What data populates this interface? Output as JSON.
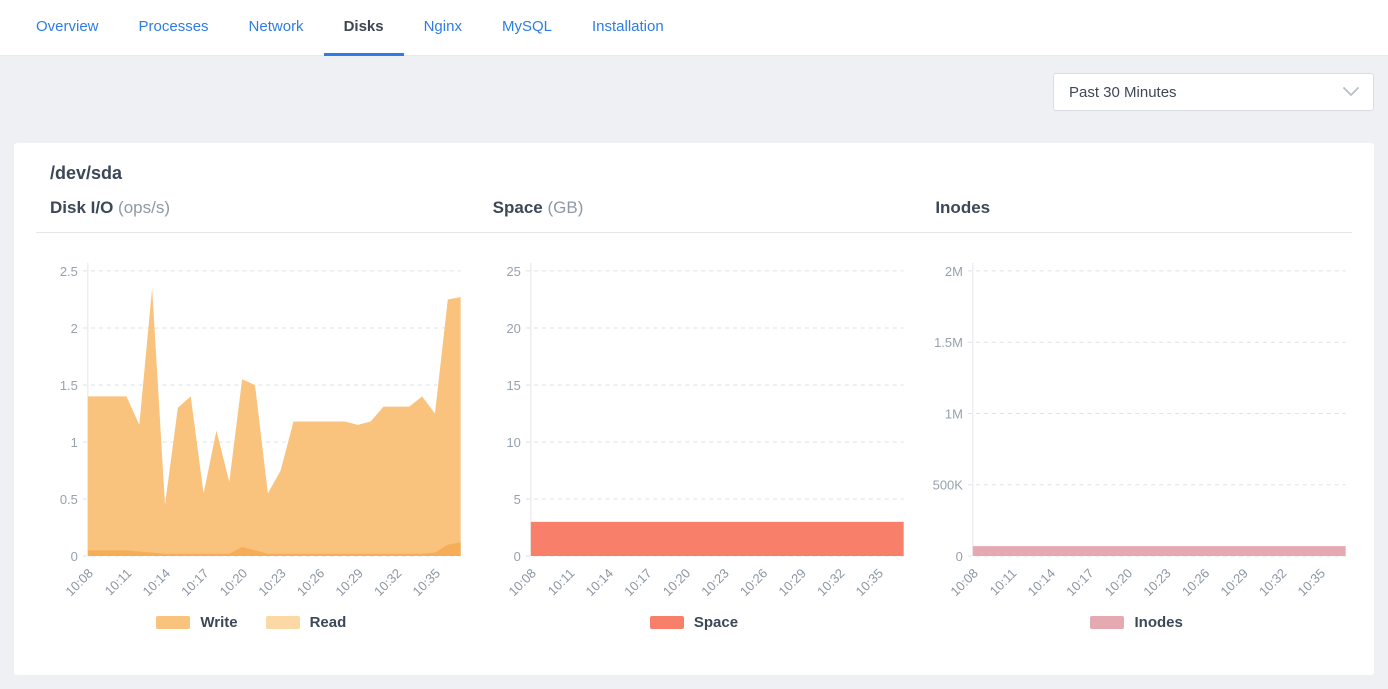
{
  "theme": {
    "accent": "#2e7de4",
    "page_bg": "#eef0f3"
  },
  "tabs": [
    {
      "label": "Overview",
      "active": false
    },
    {
      "label": "Processes",
      "active": false
    },
    {
      "label": "Network",
      "active": false
    },
    {
      "label": "Disks",
      "active": true
    },
    {
      "label": "Nginx",
      "active": false
    },
    {
      "label": "MySQL",
      "active": false
    },
    {
      "label": "Installation",
      "active": false
    }
  ],
  "toolbar": {
    "time_range": "Past 30 Minutes"
  },
  "panel": {
    "title": "/dev/sda"
  },
  "chart_data": [
    {
      "type": "area",
      "title": "Disk I/O",
      "unit": "(ops/s)",
      "y_max": 2.5,
      "grid": "dashed",
      "legend_position": "bottom",
      "y_ticks": [
        {
          "value": 2.5,
          "label": "2.5"
        },
        {
          "value": 2,
          "label": "2"
        },
        {
          "value": 1.5,
          "label": "1.5"
        },
        {
          "value": 1,
          "label": "1"
        },
        {
          "value": 0.5,
          "label": "0.5"
        },
        {
          "value": 0,
          "label": "0"
        }
      ],
      "x_labels": [
        "10:08",
        "10:11",
        "10:14",
        "10:17",
        "10:20",
        "10:23",
        "10:26",
        "10:29",
        "10:32",
        "10:35"
      ],
      "series": [
        {
          "name": "Write",
          "color": "#f9c37d",
          "values": [
            1.4,
            1.4,
            1.4,
            1.4,
            1.15,
            2.35,
            0.45,
            1.3,
            1.4,
            0.55,
            1.1,
            0.65,
            1.55,
            1.5,
            0.55,
            0.75,
            1.18,
            1.18,
            1.18,
            1.18,
            1.18,
            1.15,
            1.18,
            1.31,
            1.31,
            1.31,
            1.4,
            1.25,
            2.25,
            2.27
          ]
        },
        {
          "name": "Read",
          "color": "#fbd8a4",
          "fill": "#f6ad57",
          "values": [
            0.05,
            0.05,
            0.05,
            0.05,
            0.04,
            0.03,
            0.02,
            0.02,
            0.02,
            0.02,
            0.02,
            0.02,
            0.08,
            0.05,
            0.02,
            0.02,
            0.02,
            0.02,
            0.02,
            0.02,
            0.02,
            0.02,
            0.02,
            0.02,
            0.02,
            0.02,
            0.02,
            0.03,
            0.1,
            0.12
          ]
        }
      ]
    },
    {
      "type": "area",
      "title": "Space",
      "unit": "(GB)",
      "y_max": 25,
      "grid": "dashed",
      "legend_position": "bottom",
      "y_ticks": [
        {
          "value": 25,
          "label": "25"
        },
        {
          "value": 20,
          "label": "20"
        },
        {
          "value": 15,
          "label": "15"
        },
        {
          "value": 10,
          "label": "10"
        },
        {
          "value": 5,
          "label": "5"
        },
        {
          "value": 0,
          "label": "0"
        }
      ],
      "x_labels": [
        "10:08",
        "10:11",
        "10:14",
        "10:17",
        "10:20",
        "10:23",
        "10:26",
        "10:29",
        "10:32",
        "10:35"
      ],
      "series": [
        {
          "name": "Space",
          "color": "#f8806a",
          "values": [
            3,
            3,
            3,
            3,
            3,
            3,
            3,
            3,
            3,
            3,
            3,
            3,
            3,
            3,
            3,
            3,
            3,
            3,
            3,
            3,
            3,
            3,
            3,
            3,
            3,
            3,
            3,
            3,
            3,
            3
          ]
        }
      ]
    },
    {
      "type": "area",
      "title": "Inodes",
      "unit": "",
      "y_max": 2000000,
      "grid": "dashed",
      "legend_position": "bottom",
      "y_ticks": [
        {
          "value": 2000000,
          "label": "2M"
        },
        {
          "value": 1500000,
          "label": "1.5M"
        },
        {
          "value": 1000000,
          "label": "1M"
        },
        {
          "value": 500000,
          "label": "500K"
        },
        {
          "value": 0,
          "label": "0"
        }
      ],
      "x_labels": [
        "10:08",
        "10:11",
        "10:14",
        "10:17",
        "10:20",
        "10:23",
        "10:26",
        "10:29",
        "10:32",
        "10:35"
      ],
      "series": [
        {
          "name": "Inodes",
          "color": "#e5aab1",
          "values": [
            70000,
            70000,
            70000,
            70000,
            70000,
            70000,
            70000,
            70000,
            70000,
            70000,
            70000,
            70000,
            70000,
            70000,
            70000,
            70000,
            70000,
            70000,
            70000,
            70000,
            70000,
            70000,
            70000,
            70000,
            70000,
            70000,
            70000,
            70000,
            70000,
            70000
          ]
        }
      ]
    }
  ]
}
